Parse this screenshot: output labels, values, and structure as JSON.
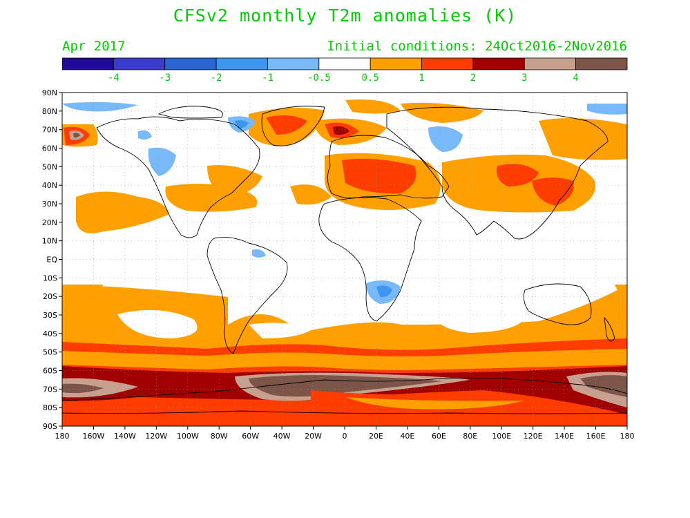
{
  "title": "CFSv2 monthly T2m anomalies (K)",
  "forecast_month": "Apr 2017",
  "initial_conditions": "Initial conditions: 24Oct2016-2Nov2016",
  "colors": {
    "label_green": "#00cc00",
    "scale": [
      "#1e0a96",
      "#3c3ccc",
      "#2864d2",
      "#3c96f0",
      "#78b9fa",
      "#ffffff",
      "#ffa000",
      "#ff3c00",
      "#a00000",
      "#c8a090",
      "#7c5448"
    ]
  },
  "colorbar": {
    "tick_labels": [
      "-4",
      "-3",
      "-2",
      "-1",
      "-0.5",
      "0.5",
      "1",
      "2",
      "3",
      "4"
    ]
  },
  "map": {
    "lat_labels": [
      "90N",
      "80N",
      "70N",
      "60N",
      "50N",
      "40N",
      "30N",
      "20N",
      "10N",
      "EQ",
      "10S",
      "20S",
      "30S",
      "40S",
      "50S",
      "60S",
      "70S",
      "80S",
      "90S"
    ],
    "lon_labels": [
      "180",
      "160W",
      "140W",
      "120W",
      "100W",
      "80W",
      "60W",
      "40W",
      "20W",
      "0",
      "20E",
      "40E",
      "60E",
      "80E",
      "100E",
      "120E",
      "140E",
      "160E",
      "180"
    ]
  },
  "chart_data": {
    "type": "heatmap",
    "title": "CFSv2 monthly T2m anomalies (K)",
    "xlim": [
      -180,
      180
    ],
    "ylim": [
      -90,
      90
    ],
    "color_levels": [
      -4,
      -3,
      -2,
      -1,
      -0.5,
      0.5,
      1,
      2,
      3,
      4
    ],
    "anomaly_regions": [
      {
        "region": "Southern Ocean 50S-60S band",
        "value": 1.5
      },
      {
        "region": "Antarctic coast 60S-70S",
        "value": 2.5
      },
      {
        "region": "Ross Sea / Weddell Sea",
        "value": 4.2
      },
      {
        "region": "Antarctic interior",
        "value": 1.5
      },
      {
        "region": "South Pacific / Indian Ocean 20S-45S",
        "value": 0.8
      },
      {
        "region": "Europe / Eastern Europe",
        "value": 1.5
      },
      {
        "region": "Greenland Sea / Svalbard",
        "value": 2.5
      },
      {
        "region": "East Asia / Korea",
        "value": 2.2
      },
      {
        "region": "North Pacific 20N-30N",
        "value": 0.8
      },
      {
        "region": "Alaska / Bering Strait",
        "value": 2.5
      },
      {
        "region": "Canada / Hudson Bay",
        "value": -0.8
      },
      {
        "region": "Western Siberia",
        "value": -0.8
      },
      {
        "region": "Southern Africa",
        "value": -1.2
      },
      {
        "region": "Tropics",
        "value": 0
      }
    ]
  }
}
